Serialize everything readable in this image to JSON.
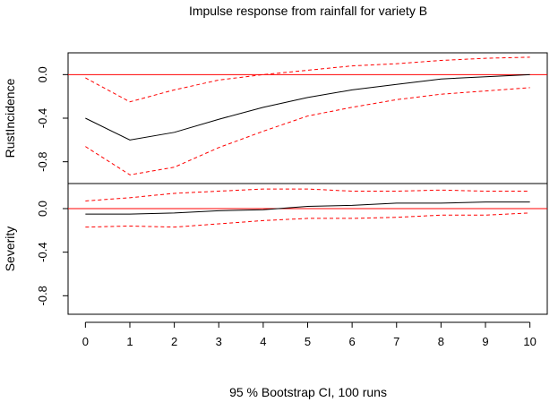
{
  "chart_data": {
    "type": "line",
    "title": "Impulse response from rainfall for variety B",
    "xlabel": "95 % Bootstrap CI,  100 runs",
    "x": [
      0,
      1,
      2,
      3,
      4,
      5,
      6,
      7,
      8,
      9,
      10
    ],
    "x_ticks": [
      "0",
      "1",
      "2",
      "3",
      "4",
      "5",
      "6",
      "7",
      "8",
      "9",
      "10"
    ],
    "panels": [
      {
        "ylabel": "RustIncidence",
        "y_ticks": [
          "0.0",
          "-0.4",
          "-0.8"
        ],
        "tick_values": [
          0.0,
          -0.4,
          -0.8
        ],
        "ylim": [
          -1.0,
          0.2
        ],
        "zero_line": true,
        "series": [
          {
            "role": "response",
            "color": "#000000",
            "style": "solid",
            "values": [
              -0.4,
              -0.6,
              -0.53,
              -0.41,
              -0.3,
              -0.21,
              -0.14,
              -0.09,
              -0.04,
              -0.02,
              0.0
            ]
          },
          {
            "role": "upper",
            "color": "#ff0000",
            "style": "dashed",
            "values": [
              -0.03,
              -0.25,
              -0.14,
              -0.05,
              0.0,
              0.04,
              0.08,
              0.1,
              0.13,
              0.15,
              0.16
            ]
          },
          {
            "role": "lower",
            "color": "#ff0000",
            "style": "dashed",
            "values": [
              -0.66,
              -0.92,
              -0.85,
              -0.67,
              -0.52,
              -0.38,
              -0.3,
              -0.23,
              -0.18,
              -0.15,
              -0.12
            ]
          }
        ]
      },
      {
        "ylabel": "Severity",
        "y_ticks": [
          "0.0",
          "-0.4",
          "-0.8"
        ],
        "tick_values": [
          0.0,
          -0.4,
          -0.8
        ],
        "ylim": [
          -0.97,
          0.23
        ],
        "zero_line": true,
        "series": [
          {
            "role": "response",
            "color": "#000000",
            "style": "solid",
            "values": [
              -0.05,
              -0.05,
              -0.04,
              -0.02,
              -0.01,
              0.02,
              0.03,
              0.05,
              0.05,
              0.06,
              0.06
            ]
          },
          {
            "role": "upper",
            "color": "#ff0000",
            "style": "dashed",
            "values": [
              0.07,
              0.1,
              0.14,
              0.16,
              0.18,
              0.18,
              0.16,
              0.16,
              0.17,
              0.16,
              0.16
            ]
          },
          {
            "role": "lower",
            "color": "#ff0000",
            "style": "dashed",
            "values": [
              -0.17,
              -0.16,
              -0.17,
              -0.14,
              -0.11,
              -0.09,
              -0.09,
              -0.08,
              -0.06,
              -0.06,
              -0.04
            ]
          }
        ]
      }
    ],
    "colors": {
      "axis": "#000000",
      "zero_line": "#ff0000",
      "response": "#000000",
      "ci": "#ff0000"
    }
  }
}
